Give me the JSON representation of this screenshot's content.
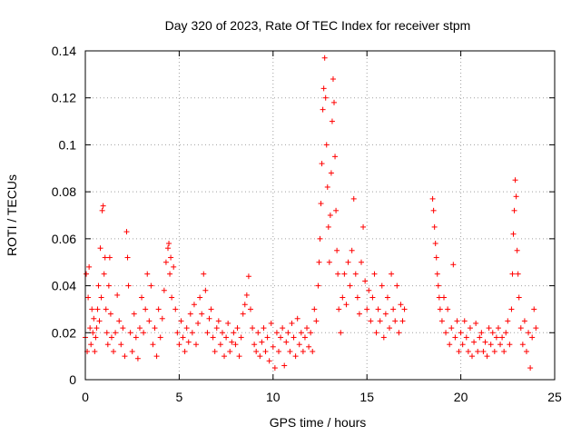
{
  "chart_data": {
    "type": "scatter",
    "title": "Day 320 of 2023, Rate Of TEC Index for receiver stpm",
    "xlabel": "GPS time / hours",
    "ylabel": "ROTI / TECUs",
    "xlim": [
      0,
      25
    ],
    "ylim": [
      0,
      0.14
    ],
    "x_ticks": [
      "0",
      "5",
      "10",
      "15",
      "20",
      "25"
    ],
    "y_ticks": [
      "0",
      "0.02",
      "0.04",
      "0.06",
      "0.08",
      "0.1",
      "0.12",
      "0.14"
    ],
    "grid": true,
    "marker": "plus",
    "color": "#ff0000",
    "series": [
      {
        "values": [
          [
            0.0,
            0.018
          ],
          [
            0.05,
            0.045
          ],
          [
            0.1,
            0.012
          ],
          [
            0.15,
            0.035
          ],
          [
            0.2,
            0.048
          ],
          [
            0.25,
            0.022
          ],
          [
            0.3,
            0.015
          ],
          [
            0.35,
            0.03
          ],
          [
            0.4,
            0.02
          ],
          [
            0.45,
            0.026
          ],
          [
            0.5,
            0.012
          ],
          [
            0.55,
            0.018
          ],
          [
            0.6,
            0.022
          ],
          [
            0.65,
            0.03
          ],
          [
            0.7,
            0.04
          ],
          [
            0.75,
            0.025
          ],
          [
            0.8,
            0.056
          ],
          [
            0.85,
            0.035
          ],
          [
            0.9,
            0.072
          ],
          [
            0.95,
            0.074
          ],
          [
            1.0,
            0.045
          ],
          [
            1.05,
            0.052
          ],
          [
            1.1,
            0.03
          ],
          [
            1.15,
            0.02
          ],
          [
            1.2,
            0.015
          ],
          [
            1.25,
            0.04
          ],
          [
            1.3,
            0.052
          ],
          [
            1.35,
            0.028
          ],
          [
            1.4,
            0.018
          ],
          [
            1.5,
            0.012
          ],
          [
            1.6,
            0.02
          ],
          [
            1.7,
            0.036
          ],
          [
            1.8,
            0.025
          ],
          [
            1.9,
            0.015
          ],
          [
            2.0,
            0.022
          ],
          [
            2.1,
            0.01
          ],
          [
            2.2,
            0.063
          ],
          [
            2.25,
            0.052
          ],
          [
            2.3,
            0.04
          ],
          [
            2.4,
            0.02
          ],
          [
            2.5,
            0.012
          ],
          [
            2.6,
            0.028
          ],
          [
            2.7,
            0.018
          ],
          [
            2.8,
            0.009
          ],
          [
            2.9,
            0.022
          ],
          [
            3.0,
            0.035
          ],
          [
            3.1,
            0.02
          ],
          [
            3.2,
            0.03
          ],
          [
            3.3,
            0.045
          ],
          [
            3.4,
            0.025
          ],
          [
            3.5,
            0.04
          ],
          [
            3.6,
            0.015
          ],
          [
            3.7,
            0.022
          ],
          [
            3.8,
            0.01
          ],
          [
            3.9,
            0.03
          ],
          [
            4.0,
            0.018
          ],
          [
            4.1,
            0.026
          ],
          [
            4.2,
            0.038
          ],
          [
            4.3,
            0.05
          ],
          [
            4.4,
            0.056
          ],
          [
            4.45,
            0.058
          ],
          [
            4.5,
            0.045
          ],
          [
            4.55,
            0.052
          ],
          [
            4.6,
            0.035
          ],
          [
            4.7,
            0.048
          ],
          [
            4.8,
            0.03
          ],
          [
            4.9,
            0.02
          ],
          [
            5.0,
            0.015
          ],
          [
            5.1,
            0.025
          ],
          [
            5.2,
            0.018
          ],
          [
            5.3,
            0.012
          ],
          [
            5.4,
            0.022
          ],
          [
            5.5,
            0.016
          ],
          [
            5.6,
            0.028
          ],
          [
            5.7,
            0.02
          ],
          [
            5.8,
            0.032
          ],
          [
            5.9,
            0.015
          ],
          [
            6.0,
            0.024
          ],
          [
            6.1,
            0.035
          ],
          [
            6.2,
            0.028
          ],
          [
            6.3,
            0.045
          ],
          [
            6.4,
            0.038
          ],
          [
            6.5,
            0.02
          ],
          [
            6.6,
            0.026
          ],
          [
            6.7,
            0.03
          ],
          [
            6.8,
            0.018
          ],
          [
            6.9,
            0.012
          ],
          [
            7.0,
            0.022
          ],
          [
            7.1,
            0.025
          ],
          [
            7.2,
            0.015
          ],
          [
            7.3,
            0.02
          ],
          [
            7.4,
            0.01
          ],
          [
            7.5,
            0.018
          ],
          [
            7.6,
            0.024
          ],
          [
            7.7,
            0.012
          ],
          [
            7.8,
            0.016
          ],
          [
            7.9,
            0.02
          ],
          [
            8.0,
            0.015
          ],
          [
            8.1,
            0.022
          ],
          [
            8.2,
            0.01
          ],
          [
            8.3,
            0.018
          ],
          [
            8.4,
            0.028
          ],
          [
            8.5,
            0.032
          ],
          [
            8.6,
            0.036
          ],
          [
            8.7,
            0.044
          ],
          [
            8.8,
            0.03
          ],
          [
            8.9,
            0.022
          ],
          [
            9.0,
            0.015
          ],
          [
            9.1,
            0.012
          ],
          [
            9.2,
            0.02
          ],
          [
            9.3,
            0.01
          ],
          [
            9.4,
            0.016
          ],
          [
            9.5,
            0.022
          ],
          [
            9.6,
            0.012
          ],
          [
            9.7,
            0.018
          ],
          [
            9.8,
            0.008
          ],
          [
            9.9,
            0.024
          ],
          [
            10.0,
            0.014
          ],
          [
            10.1,
            0.005
          ],
          [
            10.2,
            0.02
          ],
          [
            10.3,
            0.012
          ],
          [
            10.4,
            0.018
          ],
          [
            10.5,
            0.022
          ],
          [
            10.6,
            0.006
          ],
          [
            10.7,
            0.016
          ],
          [
            10.8,
            0.02
          ],
          [
            10.9,
            0.012
          ],
          [
            11.0,
            0.024
          ],
          [
            11.1,
            0.018
          ],
          [
            11.2,
            0.01
          ],
          [
            11.3,
            0.026
          ],
          [
            11.4,
            0.015
          ],
          [
            11.5,
            0.02
          ],
          [
            11.6,
            0.012
          ],
          [
            11.7,
            0.018
          ],
          [
            11.8,
            0.022
          ],
          [
            11.9,
            0.014
          ],
          [
            12.0,
            0.02
          ],
          [
            12.1,
            0.012
          ],
          [
            12.2,
            0.03
          ],
          [
            12.3,
            0.025
          ],
          [
            12.4,
            0.04
          ],
          [
            12.45,
            0.05
          ],
          [
            12.5,
            0.06
          ],
          [
            12.55,
            0.075
          ],
          [
            12.6,
            0.092
          ],
          [
            12.65,
            0.115
          ],
          [
            12.7,
            0.124
          ],
          [
            12.75,
            0.137
          ],
          [
            12.8,
            0.12
          ],
          [
            12.85,
            0.1
          ],
          [
            12.9,
            0.082
          ],
          [
            12.95,
            0.065
          ],
          [
            13.0,
            0.05
          ],
          [
            13.05,
            0.07
          ],
          [
            13.1,
            0.088
          ],
          [
            13.15,
            0.11
          ],
          [
            13.2,
            0.128
          ],
          [
            13.25,
            0.118
          ],
          [
            13.3,
            0.095
          ],
          [
            13.35,
            0.072
          ],
          [
            13.4,
            0.055
          ],
          [
            13.45,
            0.045
          ],
          [
            13.5,
            0.03
          ],
          [
            13.6,
            0.02
          ],
          [
            13.7,
            0.035
          ],
          [
            13.8,
            0.045
          ],
          [
            13.9,
            0.032
          ],
          [
            14.0,
            0.05
          ],
          [
            14.1,
            0.04
          ],
          [
            14.2,
            0.055
          ],
          [
            14.3,
            0.077
          ],
          [
            14.4,
            0.045
          ],
          [
            14.5,
            0.035
          ],
          [
            14.6,
            0.028
          ],
          [
            14.7,
            0.05
          ],
          [
            14.8,
            0.065
          ],
          [
            14.9,
            0.042
          ],
          [
            15.0,
            0.03
          ],
          [
            15.1,
            0.038
          ],
          [
            15.2,
            0.025
          ],
          [
            15.3,
            0.035
          ],
          [
            15.4,
            0.045
          ],
          [
            15.5,
            0.02
          ],
          [
            15.6,
            0.03
          ],
          [
            15.7,
            0.025
          ],
          [
            15.8,
            0.04
          ],
          [
            15.9,
            0.018
          ],
          [
            16.0,
            0.028
          ],
          [
            16.1,
            0.035
          ],
          [
            16.2,
            0.022
          ],
          [
            16.3,
            0.045
          ],
          [
            16.4,
            0.03
          ],
          [
            16.5,
            0.025
          ],
          [
            16.6,
            0.04
          ],
          [
            16.7,
            0.02
          ],
          [
            16.8,
            0.032
          ],
          [
            16.9,
            0.025
          ],
          [
            17.0,
            0.03
          ],
          [
            18.5,
            0.077
          ],
          [
            18.55,
            0.072
          ],
          [
            18.6,
            0.065
          ],
          [
            18.65,
            0.058
          ],
          [
            18.7,
            0.052
          ],
          [
            18.75,
            0.045
          ],
          [
            18.8,
            0.04
          ],
          [
            18.85,
            0.035
          ],
          [
            18.9,
            0.03
          ],
          [
            19.0,
            0.025
          ],
          [
            19.1,
            0.035
          ],
          [
            19.2,
            0.02
          ],
          [
            19.3,
            0.03
          ],
          [
            19.4,
            0.015
          ],
          [
            19.5,
            0.022
          ],
          [
            19.6,
            0.049
          ],
          [
            19.7,
            0.018
          ],
          [
            19.8,
            0.025
          ],
          [
            19.9,
            0.012
          ],
          [
            20.0,
            0.02
          ],
          [
            20.1,
            0.015
          ],
          [
            20.2,
            0.025
          ],
          [
            20.3,
            0.018
          ],
          [
            20.4,
            0.012
          ],
          [
            20.5,
            0.022
          ],
          [
            20.6,
            0.01
          ],
          [
            20.7,
            0.016
          ],
          [
            20.8,
            0.024
          ],
          [
            20.9,
            0.012
          ],
          [
            21.0,
            0.018
          ],
          [
            21.1,
            0.02
          ],
          [
            21.2,
            0.012
          ],
          [
            21.3,
            0.016
          ],
          [
            21.4,
            0.01
          ],
          [
            21.5,
            0.022
          ],
          [
            21.6,
            0.015
          ],
          [
            21.7,
            0.02
          ],
          [
            21.8,
            0.012
          ],
          [
            21.9,
            0.018
          ],
          [
            22.0,
            0.022
          ],
          [
            22.1,
            0.015
          ],
          [
            22.2,
            0.018
          ],
          [
            22.3,
            0.012
          ],
          [
            22.4,
            0.02
          ],
          [
            22.5,
            0.025
          ],
          [
            22.6,
            0.015
          ],
          [
            22.7,
            0.03
          ],
          [
            22.75,
            0.045
          ],
          [
            22.8,
            0.062
          ],
          [
            22.85,
            0.072
          ],
          [
            22.9,
            0.085
          ],
          [
            22.95,
            0.078
          ],
          [
            23.0,
            0.055
          ],
          [
            23.05,
            0.045
          ],
          [
            23.1,
            0.035
          ],
          [
            23.2,
            0.022
          ],
          [
            23.3,
            0.015
          ],
          [
            23.4,
            0.025
          ],
          [
            23.5,
            0.012
          ],
          [
            23.6,
            0.02
          ],
          [
            23.7,
            0.005
          ],
          [
            23.8,
            0.018
          ],
          [
            23.9,
            0.03
          ],
          [
            24.0,
            0.022
          ]
        ]
      }
    ]
  }
}
